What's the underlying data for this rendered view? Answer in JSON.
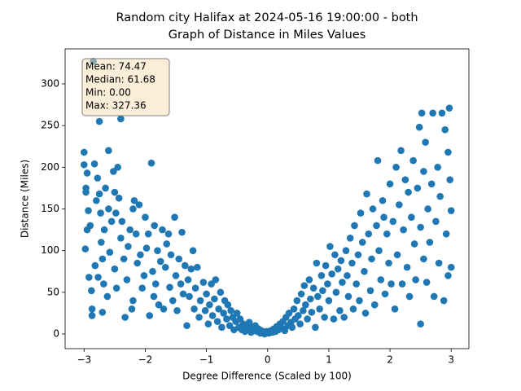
{
  "chart_data": {
    "type": "scatter",
    "title": [
      "Random city Halifax at 2024-05-16 19:00:00  - both",
      "Graph of Distance in Miles Values"
    ],
    "x_label": "Degree Difference (Scaled by 100)",
    "y_label": "Distance (Miles)",
    "annotation": [
      "Mean: 74.47",
      "Median: 61.68",
      "Min: 0.00",
      "Max: 327.36"
    ],
    "color": "#1f77b4",
    "xlim": [
      -3.31,
      3.29
    ],
    "ylim": [
      -17.6,
      342
    ],
    "xticks": [
      {
        "value": -3,
        "label": "−3"
      },
      {
        "value": -2,
        "label": "−2"
      },
      {
        "value": -1,
        "label": "−1"
      },
      0,
      1,
      2,
      3
    ],
    "yticks": [
      0,
      50,
      100,
      150,
      200,
      250,
      300
    ],
    "x": [
      -3.0,
      -3.0,
      -2.97,
      -2.97,
      -2.95,
      -2.98,
      -2.95,
      -2.93,
      -2.92,
      -2.9,
      -2.88,
      -2.87,
      -2.87,
      -2.85,
      -2.83,
      -2.82,
      -2.8,
      -2.78,
      -2.77,
      -2.75,
      -2.75,
      -2.73,
      -2.72,
      -2.7,
      -2.7,
      -2.68,
      -2.67,
      -2.65,
      -2.62,
      -2.6,
      -2.6,
      -2.58,
      -2.55,
      -2.52,
      -2.5,
      -2.5,
      -2.48,
      -2.47,
      -2.45,
      -2.43,
      -2.4,
      -2.4,
      -2.38,
      -2.35,
      -2.33,
      -2.3,
      -2.28,
      -2.25,
      -2.22,
      -2.2,
      -2.2,
      -2.18,
      -2.15,
      -2.13,
      -2.1,
      -2.08,
      -2.05,
      -2.02,
      -2.0,
      -1.98,
      -1.95,
      -1.93,
      -1.9,
      -1.88,
      -1.86,
      -1.85,
      -1.83,
      -1.8,
      -1.78,
      -1.75,
      -1.72,
      -1.7,
      -1.67,
      -1.65,
      -1.62,
      -1.6,
      -1.58,
      -1.55,
      -1.52,
      -1.5,
      -1.48,
      -1.45,
      -1.42,
      -1.4,
      -1.38,
      -1.35,
      -1.32,
      -1.3,
      -1.28,
      -1.25,
      -1.22,
      -1.2,
      -1.18,
      -1.15,
      -1.12,
      -1.1,
      -1.05,
      -1.02,
      -1.0,
      -0.97,
      -0.95,
      -0.92,
      -0.9,
      -0.87,
      -0.85,
      -0.82,
      -0.8,
      -0.77,
      -0.75,
      -0.72,
      -0.7,
      -0.67,
      -0.65,
      -0.62,
      -0.6,
      -0.57,
      -0.55,
      -0.52,
      -0.5,
      -0.47,
      -0.45,
      -0.42,
      -0.4,
      -0.37,
      -0.35,
      -0.32,
      -0.3,
      -0.27,
      -0.25,
      -0.22,
      -0.2,
      -0.17,
      -0.15,
      -0.12,
      -0.1,
      -0.07,
      -0.05,
      -0.02,
      0.02,
      0.05,
      0.08,
      0.1,
      0.13,
      0.15,
      0.18,
      0.2,
      0.23,
      0.25,
      0.28,
      0.3,
      0.33,
      0.35,
      0.38,
      0.4,
      0.43,
      0.45,
      0.48,
      0.5,
      0.53,
      0.55,
      0.58,
      0.6,
      0.62,
      0.65,
      0.68,
      0.7,
      0.72,
      0.75,
      0.78,
      0.8,
      0.82,
      0.85,
      0.88,
      0.9,
      0.93,
      0.95,
      0.98,
      1.0,
      1.02,
      1.05,
      1.08,
      1.1,
      1.12,
      1.15,
      1.18,
      1.2,
      1.22,
      1.25,
      1.28,
      1.3,
      1.32,
      1.35,
      1.38,
      1.4,
      1.42,
      1.45,
      1.48,
      1.5,
      1.52,
      1.55,
      1.58,
      1.6,
      1.62,
      1.65,
      1.68,
      1.7,
      1.72,
      1.75,
      1.78,
      1.8,
      1.82,
      1.85,
      1.88,
      1.9,
      1.92,
      1.95,
      1.98,
      2.0,
      2.02,
      2.05,
      2.08,
      2.1,
      2.12,
      2.15,
      2.18,
      2.2,
      2.22,
      2.25,
      2.28,
      2.3,
      2.32,
      2.35,
      2.38,
      2.4,
      2.42,
      2.45,
      2.48,
      2.5,
      2.5,
      2.52,
      2.55,
      2.55,
      2.58,
      2.6,
      2.62,
      2.65,
      2.68,
      2.7,
      2.72,
      2.75,
      2.78,
      2.8,
      2.82,
      2.85,
      2.88,
      2.9,
      2.92,
      2.95,
      2.95,
      2.97,
      2.98,
      3.0,
      3.0
    ],
    "values": [
      218,
      203,
      175,
      170,
      193,
      102,
      125,
      148,
      68,
      130,
      52,
      30,
      22,
      327,
      204,
      82,
      160,
      187,
      68,
      255,
      168,
      145,
      110,
      90,
      26,
      60,
      125,
      175,
      45,
      220,
      150,
      98,
      135,
      195,
      170,
      78,
      145,
      55,
      200,
      163,
      258,
      115,
      135,
      90,
      20,
      65,
      105,
      125,
      30,
      40,
      150,
      160,
      120,
      85,
      155,
      95,
      55,
      70,
      140,
      103,
      120,
      22,
      205,
      75,
      45,
      130,
      60,
      100,
      35,
      87,
      125,
      30,
      80,
      108,
      120,
      56,
      95,
      40,
      140,
      70,
      28,
      90,
      60,
      122,
      48,
      82,
      10,
      65,
      45,
      78,
      100,
      30,
      55,
      80,
      20,
      40,
      62,
      28,
      48,
      12,
      35,
      60,
      22,
      42,
      65,
      15,
      30,
      50,
      8,
      25,
      40,
      18,
      35,
      10,
      28,
      20,
      5,
      15,
      25,
      8,
      18,
      5,
      12,
      3,
      10,
      6,
      14,
      2,
      8,
      4,
      10,
      3,
      6,
      1,
      4,
      2,
      0,
      3,
      1,
      4,
      2,
      6,
      3,
      9,
      5,
      12,
      7,
      15,
      4,
      20,
      10,
      25,
      14,
      8,
      30,
      18,
      40,
      22,
      12,
      48,
      28,
      58,
      35,
      18,
      65,
      42,
      26,
      55,
      8,
      85,
      45,
      30,
      70,
      52,
      20,
      82,
      60,
      40,
      105,
      72,
      18,
      95,
      50,
      78,
      28,
      88,
      62,
      20,
      100,
      70,
      45,
      115,
      85,
      30,
      130,
      60,
      95,
      40,
      145,
      110,
      75,
      25,
      168,
      120,
      52,
      90,
      150,
      35,
      130,
      208,
      100,
      65,
      160,
      140,
      48,
      120,
      85,
      180,
      60,
      135,
      30,
      200,
      95,
      155,
      220,
      60,
      125,
      185,
      80,
      170,
      45,
      140,
      208,
      108,
      65,
      175,
      248,
      12,
      128,
      265,
      195,
      90,
      230,
      62,
      150,
      110,
      180,
      265,
      45,
      135,
      200,
      85,
      165,
      265,
      40,
      245,
      120,
      218,
      70,
      271,
      185,
      148,
      80
    ]
  }
}
